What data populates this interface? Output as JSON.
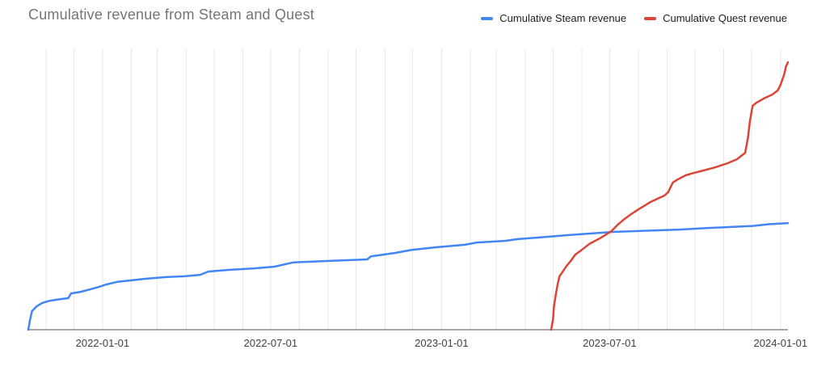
{
  "title": "Cumulative revenue from Steam and Quest",
  "colors": {
    "steam": "#4285f4",
    "quest": "#db4437",
    "title_text": "#757575",
    "axis_text": "#424242",
    "legend_text": "#212121",
    "gridline": "#e8e8e8",
    "baseline": "#a6a6a6",
    "background": "#ffffff"
  },
  "legend": {
    "items": [
      {
        "label": "Cumulative Steam revenue",
        "swatch_color": "#4285f4"
      },
      {
        "label": "Cumulative Quest revenue",
        "swatch_color": "#db4437"
      }
    ]
  },
  "chart_data": {
    "type": "line",
    "title": "Cumulative revenue from Steam and Quest",
    "xlabel": "",
    "ylabel": "",
    "legend_position": "top-right",
    "grid": "vertical monthly gridlines only, no horizontal gridlines, no y-axis tick labels",
    "x_domain": [
      "2021-10-13",
      "2024-01-09"
    ],
    "x_ticks": [
      "2022-01-01",
      "2022-07-01",
      "2023-01-01",
      "2023-07-01",
      "2024-01-01"
    ],
    "y_axis_labels_visible": false,
    "y_unit": "relative cumulative revenue, percent of plot height (chart shows no y-axis values)",
    "ylim": [
      0,
      100
    ],
    "series": [
      {
        "name": "Cumulative Steam revenue",
        "color": "#4285f4",
        "points": [
          [
            "2021-10-13",
            0
          ],
          [
            "2021-10-15",
            3.7
          ],
          [
            "2021-10-17",
            6.6
          ],
          [
            "2021-10-22",
            8.3
          ],
          [
            "2021-10-28",
            9.5
          ],
          [
            "2021-11-05",
            10.3
          ],
          [
            "2021-11-17",
            10.9
          ],
          [
            "2021-11-25",
            11.2
          ],
          [
            "2021-11-28",
            12.9
          ],
          [
            "2021-12-09",
            13.5
          ],
          [
            "2021-12-19",
            14.4
          ],
          [
            "2021-12-28",
            15.2
          ],
          [
            "2022-01-05",
            16.1
          ],
          [
            "2022-01-17",
            17.0
          ],
          [
            "2022-01-30",
            17.5
          ],
          [
            "2022-02-16",
            18.1
          ],
          [
            "2022-03-10",
            18.7
          ],
          [
            "2022-03-30",
            19.0
          ],
          [
            "2022-04-16",
            19.5
          ],
          [
            "2022-04-25",
            20.7
          ],
          [
            "2022-05-18",
            21.3
          ],
          [
            "2022-06-13",
            21.8
          ],
          [
            "2022-07-05",
            22.4
          ],
          [
            "2022-07-25",
            23.9
          ],
          [
            "2022-08-27",
            24.4
          ],
          [
            "2022-10-13",
            25.0
          ],
          [
            "2022-10-17",
            26.1
          ],
          [
            "2022-11-12",
            27.3
          ],
          [
            "2022-11-30",
            28.4
          ],
          [
            "2022-12-26",
            29.3
          ],
          [
            "2023-01-26",
            30.2
          ],
          [
            "2023-02-08",
            31.0
          ],
          [
            "2023-03-11",
            31.6
          ],
          [
            "2023-03-24",
            32.2
          ],
          [
            "2023-04-23",
            33.0
          ],
          [
            "2023-05-15",
            33.6
          ],
          [
            "2023-06-10",
            34.2
          ],
          [
            "2023-07-06",
            34.8
          ],
          [
            "2023-08-10",
            35.2
          ],
          [
            "2023-09-14",
            35.6
          ],
          [
            "2023-10-11",
            36.1
          ],
          [
            "2023-11-06",
            36.5
          ],
          [
            "2023-12-02",
            36.9
          ],
          [
            "2023-12-19",
            37.5
          ],
          [
            "2024-01-09",
            37.9
          ]
        ]
      },
      {
        "name": "Cumulative Quest revenue",
        "color": "#db4437",
        "points": [
          [
            "2023-04-29",
            0
          ],
          [
            "2023-05-01",
            3.7
          ],
          [
            "2023-05-02",
            8.0
          ],
          [
            "2023-05-04",
            12.4
          ],
          [
            "2023-05-06",
            16.1
          ],
          [
            "2023-05-08",
            19.0
          ],
          [
            "2023-05-11",
            20.4
          ],
          [
            "2023-05-15",
            22.4
          ],
          [
            "2023-05-20",
            24.4
          ],
          [
            "2023-05-25",
            26.7
          ],
          [
            "2023-06-01",
            28.4
          ],
          [
            "2023-06-10",
            30.7
          ],
          [
            "2023-06-19",
            32.2
          ],
          [
            "2023-06-26",
            33.6
          ],
          [
            "2023-07-03",
            35.1
          ],
          [
            "2023-07-10",
            37.4
          ],
          [
            "2023-07-16",
            39.1
          ],
          [
            "2023-07-23",
            40.8
          ],
          [
            "2023-08-01",
            42.8
          ],
          [
            "2023-08-07",
            44.0
          ],
          [
            "2023-08-14",
            45.4
          ],
          [
            "2023-08-23",
            46.8
          ],
          [
            "2023-08-29",
            47.7
          ],
          [
            "2023-09-02",
            48.9
          ],
          [
            "2023-09-07",
            52.3
          ],
          [
            "2023-09-12",
            53.4
          ],
          [
            "2023-09-21",
            54.9
          ],
          [
            "2023-09-29",
            55.7
          ],
          [
            "2023-10-10",
            56.6
          ],
          [
            "2023-10-23",
            57.8
          ],
          [
            "2023-11-05",
            59.2
          ],
          [
            "2023-11-15",
            60.6
          ],
          [
            "2023-11-24",
            62.9
          ],
          [
            "2023-11-27",
            68.4
          ],
          [
            "2023-11-29",
            74.1
          ],
          [
            "2023-12-02",
            79.6
          ],
          [
            "2023-12-06",
            80.7
          ],
          [
            "2023-12-14",
            82.2
          ],
          [
            "2023-12-23",
            83.6
          ],
          [
            "2023-12-29",
            85.1
          ],
          [
            "2024-01-01",
            87.1
          ],
          [
            "2024-01-05",
            90.8
          ],
          [
            "2024-01-07",
            93.7
          ],
          [
            "2024-01-09",
            95.1
          ]
        ]
      }
    ]
  }
}
